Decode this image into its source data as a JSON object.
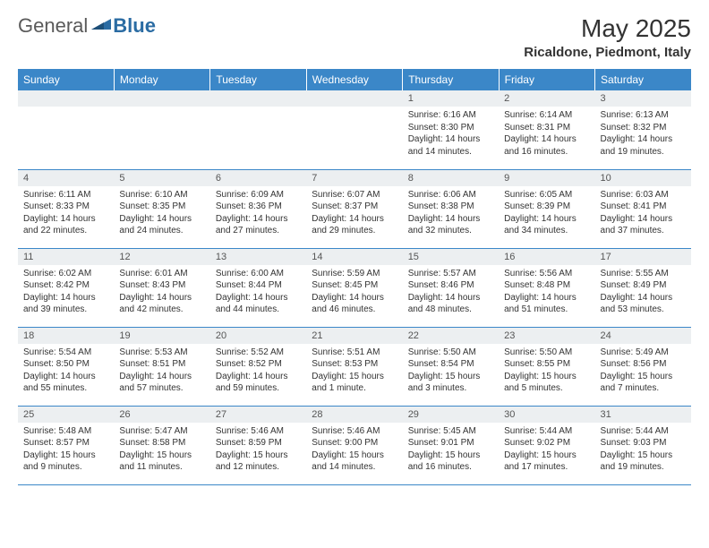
{
  "logo": {
    "text_general": "General",
    "text_blue": "Blue",
    "icon_name": "logo-triangle",
    "accent_color": "#2b6ca3"
  },
  "header": {
    "month_title": "May 2025",
    "location": "Ricaldone, Piedmont, Italy"
  },
  "calendar": {
    "header_bg": "#3b87c8",
    "header_fg": "#ffffff",
    "daynum_bg": "#eceff1",
    "border_color": "#3b87c8",
    "day_labels": [
      "Sunday",
      "Monday",
      "Tuesday",
      "Wednesday",
      "Thursday",
      "Friday",
      "Saturday"
    ],
    "weeks": [
      [
        null,
        null,
        null,
        null,
        {
          "n": "1",
          "sr": "Sunrise: 6:16 AM",
          "ss": "Sunset: 8:30 PM",
          "d1": "Daylight: 14 hours",
          "d2": "and 14 minutes."
        },
        {
          "n": "2",
          "sr": "Sunrise: 6:14 AM",
          "ss": "Sunset: 8:31 PM",
          "d1": "Daylight: 14 hours",
          "d2": "and 16 minutes."
        },
        {
          "n": "3",
          "sr": "Sunrise: 6:13 AM",
          "ss": "Sunset: 8:32 PM",
          "d1": "Daylight: 14 hours",
          "d2": "and 19 minutes."
        }
      ],
      [
        {
          "n": "4",
          "sr": "Sunrise: 6:11 AM",
          "ss": "Sunset: 8:33 PM",
          "d1": "Daylight: 14 hours",
          "d2": "and 22 minutes."
        },
        {
          "n": "5",
          "sr": "Sunrise: 6:10 AM",
          "ss": "Sunset: 8:35 PM",
          "d1": "Daylight: 14 hours",
          "d2": "and 24 minutes."
        },
        {
          "n": "6",
          "sr": "Sunrise: 6:09 AM",
          "ss": "Sunset: 8:36 PM",
          "d1": "Daylight: 14 hours",
          "d2": "and 27 minutes."
        },
        {
          "n": "7",
          "sr": "Sunrise: 6:07 AM",
          "ss": "Sunset: 8:37 PM",
          "d1": "Daylight: 14 hours",
          "d2": "and 29 minutes."
        },
        {
          "n": "8",
          "sr": "Sunrise: 6:06 AM",
          "ss": "Sunset: 8:38 PM",
          "d1": "Daylight: 14 hours",
          "d2": "and 32 minutes."
        },
        {
          "n": "9",
          "sr": "Sunrise: 6:05 AM",
          "ss": "Sunset: 8:39 PM",
          "d1": "Daylight: 14 hours",
          "d2": "and 34 minutes."
        },
        {
          "n": "10",
          "sr": "Sunrise: 6:03 AM",
          "ss": "Sunset: 8:41 PM",
          "d1": "Daylight: 14 hours",
          "d2": "and 37 minutes."
        }
      ],
      [
        {
          "n": "11",
          "sr": "Sunrise: 6:02 AM",
          "ss": "Sunset: 8:42 PM",
          "d1": "Daylight: 14 hours",
          "d2": "and 39 minutes."
        },
        {
          "n": "12",
          "sr": "Sunrise: 6:01 AM",
          "ss": "Sunset: 8:43 PM",
          "d1": "Daylight: 14 hours",
          "d2": "and 42 minutes."
        },
        {
          "n": "13",
          "sr": "Sunrise: 6:00 AM",
          "ss": "Sunset: 8:44 PM",
          "d1": "Daylight: 14 hours",
          "d2": "and 44 minutes."
        },
        {
          "n": "14",
          "sr": "Sunrise: 5:59 AM",
          "ss": "Sunset: 8:45 PM",
          "d1": "Daylight: 14 hours",
          "d2": "and 46 minutes."
        },
        {
          "n": "15",
          "sr": "Sunrise: 5:57 AM",
          "ss": "Sunset: 8:46 PM",
          "d1": "Daylight: 14 hours",
          "d2": "and 48 minutes."
        },
        {
          "n": "16",
          "sr": "Sunrise: 5:56 AM",
          "ss": "Sunset: 8:48 PM",
          "d1": "Daylight: 14 hours",
          "d2": "and 51 minutes."
        },
        {
          "n": "17",
          "sr": "Sunrise: 5:55 AM",
          "ss": "Sunset: 8:49 PM",
          "d1": "Daylight: 14 hours",
          "d2": "and 53 minutes."
        }
      ],
      [
        {
          "n": "18",
          "sr": "Sunrise: 5:54 AM",
          "ss": "Sunset: 8:50 PM",
          "d1": "Daylight: 14 hours",
          "d2": "and 55 minutes."
        },
        {
          "n": "19",
          "sr": "Sunrise: 5:53 AM",
          "ss": "Sunset: 8:51 PM",
          "d1": "Daylight: 14 hours",
          "d2": "and 57 minutes."
        },
        {
          "n": "20",
          "sr": "Sunrise: 5:52 AM",
          "ss": "Sunset: 8:52 PM",
          "d1": "Daylight: 14 hours",
          "d2": "and 59 minutes."
        },
        {
          "n": "21",
          "sr": "Sunrise: 5:51 AM",
          "ss": "Sunset: 8:53 PM",
          "d1": "Daylight: 15 hours",
          "d2": "and 1 minute."
        },
        {
          "n": "22",
          "sr": "Sunrise: 5:50 AM",
          "ss": "Sunset: 8:54 PM",
          "d1": "Daylight: 15 hours",
          "d2": "and 3 minutes."
        },
        {
          "n": "23",
          "sr": "Sunrise: 5:50 AM",
          "ss": "Sunset: 8:55 PM",
          "d1": "Daylight: 15 hours",
          "d2": "and 5 minutes."
        },
        {
          "n": "24",
          "sr": "Sunrise: 5:49 AM",
          "ss": "Sunset: 8:56 PM",
          "d1": "Daylight: 15 hours",
          "d2": "and 7 minutes."
        }
      ],
      [
        {
          "n": "25",
          "sr": "Sunrise: 5:48 AM",
          "ss": "Sunset: 8:57 PM",
          "d1": "Daylight: 15 hours",
          "d2": "and 9 minutes."
        },
        {
          "n": "26",
          "sr": "Sunrise: 5:47 AM",
          "ss": "Sunset: 8:58 PM",
          "d1": "Daylight: 15 hours",
          "d2": "and 11 minutes."
        },
        {
          "n": "27",
          "sr": "Sunrise: 5:46 AM",
          "ss": "Sunset: 8:59 PM",
          "d1": "Daylight: 15 hours",
          "d2": "and 12 minutes."
        },
        {
          "n": "28",
          "sr": "Sunrise: 5:46 AM",
          "ss": "Sunset: 9:00 PM",
          "d1": "Daylight: 15 hours",
          "d2": "and 14 minutes."
        },
        {
          "n": "29",
          "sr": "Sunrise: 5:45 AM",
          "ss": "Sunset: 9:01 PM",
          "d1": "Daylight: 15 hours",
          "d2": "and 16 minutes."
        },
        {
          "n": "30",
          "sr": "Sunrise: 5:44 AM",
          "ss": "Sunset: 9:02 PM",
          "d1": "Daylight: 15 hours",
          "d2": "and 17 minutes."
        },
        {
          "n": "31",
          "sr": "Sunrise: 5:44 AM",
          "ss": "Sunset: 9:03 PM",
          "d1": "Daylight: 15 hours",
          "d2": "and 19 minutes."
        }
      ]
    ]
  }
}
